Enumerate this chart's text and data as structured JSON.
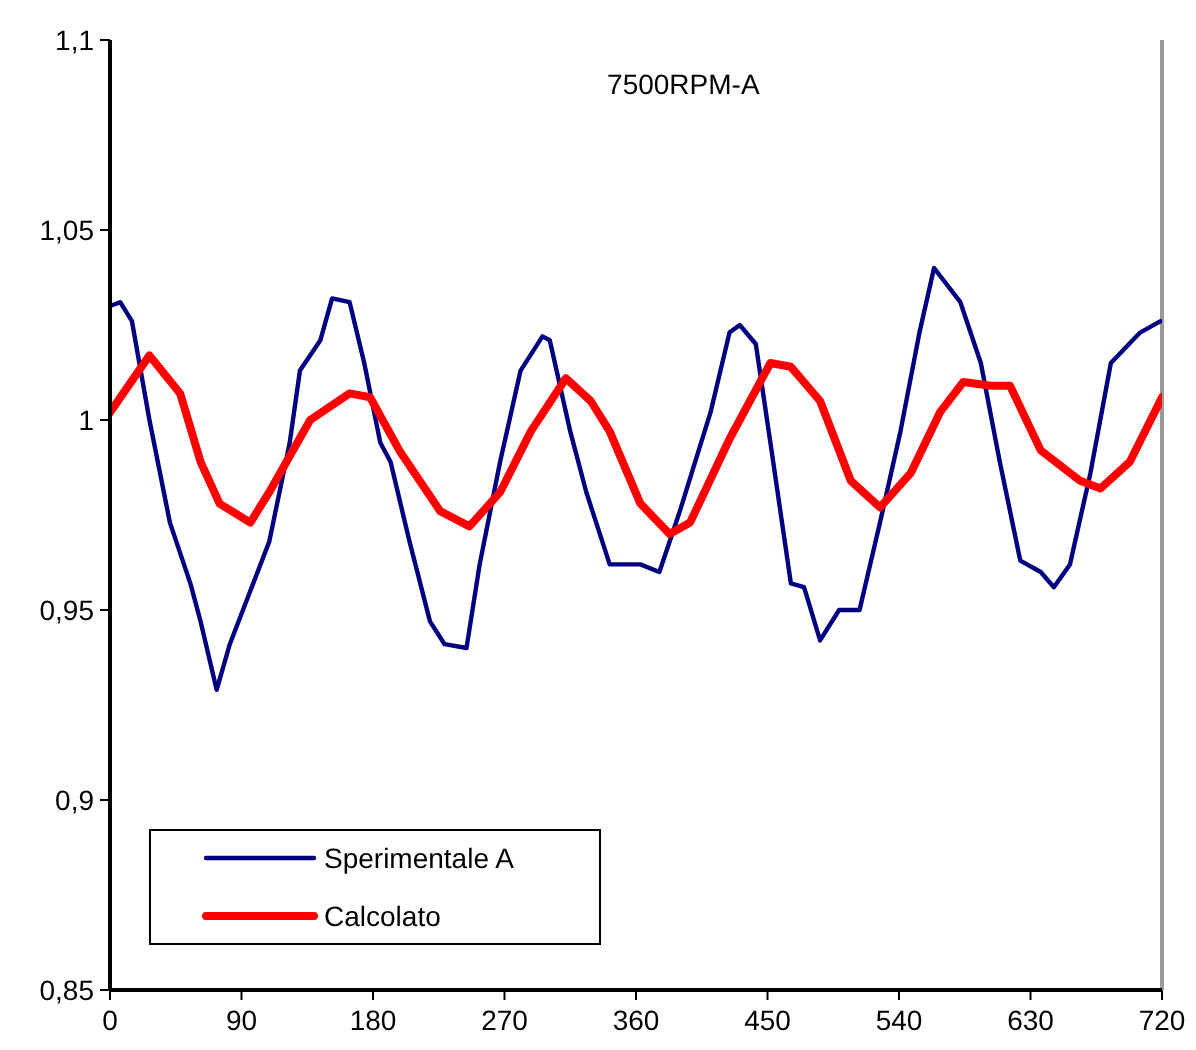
{
  "chart_data": {
    "type": "line",
    "title": "7500RPM-A",
    "xlim": [
      0,
      720
    ],
    "xticks": [
      0,
      90,
      180,
      270,
      360,
      450,
      540,
      630,
      720
    ],
    "ylim": [
      0.85,
      1.1
    ],
    "yticks": [
      {
        "value": 0.85,
        "label": "0,85"
      },
      {
        "value": 0.9,
        "label": "0,9"
      },
      {
        "value": 0.95,
        "label": "0,95"
      },
      {
        "value": 1,
        "label": "1"
      },
      {
        "value": 1.05,
        "label": "1,05"
      },
      {
        "value": 1.1,
        "label": "1,1"
      }
    ],
    "grid": false,
    "legend": "bottom left",
    "marker": "none",
    "line_style": "solid",
    "series": [
      {
        "name": "Sperimentale A",
        "color": "#000080",
        "x": [
          0,
          7,
          15,
          27,
          41,
          55,
          62,
          73,
          82,
          96,
          109,
          123,
          130,
          144,
          152,
          164,
          174,
          185,
          192,
          205,
          219,
          229,
          244,
          253,
          267,
          281,
          296,
          301,
          315,
          326,
          342,
          363,
          376,
          390,
          411,
          424,
          431,
          442,
          452,
          466,
          475,
          486,
          499,
          513,
          527,
          541,
          554,
          564,
          582,
          596,
          609,
          623,
          637,
          646,
          657,
          671,
          685,
          705,
          719
        ],
        "values": [
          1.03,
          1.031,
          1.026,
          1.0,
          0.973,
          0.957,
          0.947,
          0.929,
          0.941,
          0.955,
          0.968,
          0.994,
          1.013,
          1.021,
          1.032,
          1.031,
          1.015,
          0.994,
          0.989,
          0.968,
          0.947,
          0.941,
          0.94,
          0.962,
          0.989,
          1.013,
          1.022,
          1.021,
          0.997,
          0.981,
          0.962,
          0.962,
          0.96,
          0.976,
          1.002,
          1.023,
          1.025,
          1.02,
          0.994,
          0.957,
          0.956,
          0.942,
          0.95,
          0.95,
          0.973,
          0.997,
          1.023,
          1.04,
          1.031,
          1.015,
          0.989,
          0.963,
          0.96,
          0.956,
          0.962,
          0.986,
          1.015,
          1.023,
          1.026
        ]
      },
      {
        "name": "Calcolato",
        "color": "#ff0000",
        "x": [
          0,
          27,
          48,
          62,
          75,
          96,
          109,
          137,
          164,
          178,
          198,
          226,
          246,
          267,
          288,
          312,
          329,
          342,
          363,
          383,
          397,
          424,
          452,
          466,
          486,
          507,
          527,
          548,
          568,
          584,
          603,
          616,
          637,
          664,
          678,
          698,
          720
        ],
        "values": [
          1.002,
          1.017,
          1.007,
          0.989,
          0.978,
          0.973,
          0.981,
          1.0,
          1.007,
          1.006,
          0.992,
          0.976,
          0.972,
          0.981,
          0.997,
          1.011,
          1.005,
          0.997,
          0.978,
          0.97,
          0.973,
          0.995,
          1.015,
          1.014,
          1.005,
          0.984,
          0.977,
          0.986,
          1.002,
          1.01,
          1.009,
          1.009,
          0.992,
          0.984,
          0.982,
          0.989,
          1.006
        ]
      }
    ]
  }
}
